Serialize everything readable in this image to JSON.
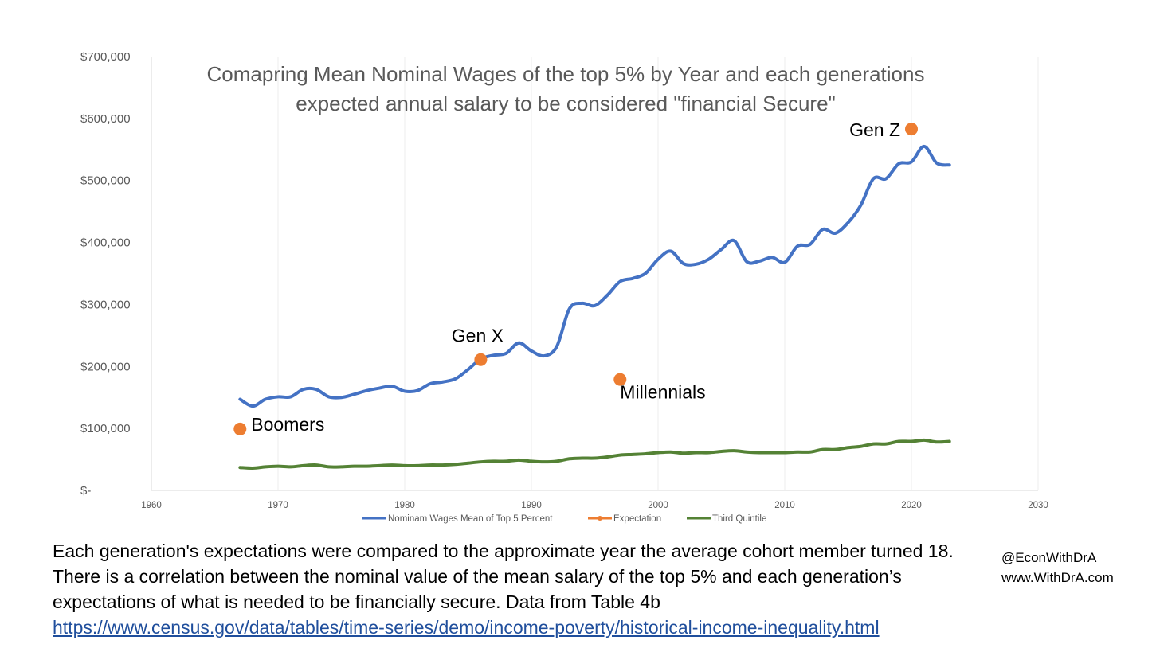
{
  "chart_data": {
    "type": "line",
    "title_lines": [
      "Comapring Mean Nominal Wages of the top 5% by Year and each generations",
      "expected annual salary to be considered \"financial Secure\""
    ],
    "xlim": [
      1960,
      2030
    ],
    "ylim": [
      0,
      700000
    ],
    "x_ticks": [
      "1960",
      "1970",
      "1980",
      "1990",
      "2000",
      "2010",
      "2020",
      "2030"
    ],
    "y_ticks": [
      "$-",
      "$100,000",
      "$200,000",
      "$300,000",
      "$400,000",
      "$500,000",
      "$600,000",
      "$700,000"
    ],
    "grid": "vertical",
    "legend_position": "bottom",
    "series": [
      {
        "name": "Nominam Wages Mean of Top 5 Percent",
        "color": "#4472c4",
        "x": [
          1967,
          1968,
          1969,
          1970,
          1971,
          1972,
          1973,
          1974,
          1975,
          1976,
          1977,
          1978,
          1979,
          1980,
          1981,
          1982,
          1983,
          1984,
          1985,
          1986,
          1987,
          1988,
          1989,
          1990,
          1991,
          1992,
          1993,
          1994,
          1995,
          1996,
          1997,
          1998,
          1999,
          2000,
          2001,
          2002,
          2003,
          2004,
          2005,
          2006,
          2007,
          2008,
          2009,
          2010,
          2011,
          2012,
          2013,
          2014,
          2015,
          2016,
          2017,
          2018,
          2019,
          2020,
          2021,
          2022,
          2023
        ],
        "y": [
          147000,
          136000,
          147000,
          151000,
          151000,
          163000,
          163000,
          151000,
          150000,
          155000,
          161000,
          165000,
          168000,
          160000,
          161000,
          172000,
          175000,
          180000,
          195000,
          212000,
          218000,
          221000,
          238000,
          225000,
          217000,
          232000,
          293000,
          302000,
          298000,
          315000,
          337000,
          342000,
          350000,
          373000,
          386000,
          366000,
          365000,
          373000,
          389000,
          403000,
          369000,
          370000,
          376000,
          368000,
          394000,
          397000,
          421000,
          415000,
          432000,
          460000,
          503000,
          503000,
          527000,
          530000,
          555000,
          528000,
          525000
        ]
      },
      {
        "name": "Expectation",
        "color": "#ed7d31",
        "marker_only": true,
        "x": [
          1967,
          1986,
          1997,
          2020
        ],
        "y": [
          99000,
          211000,
          179000,
          583000
        ],
        "labels": [
          "Boomers",
          "Gen X",
          "Millennials",
          "Gen Z"
        ]
      },
      {
        "name": "Third Quintile",
        "color": "#548235",
        "x": [
          1967,
          1968,
          1969,
          1970,
          1971,
          1972,
          1973,
          1974,
          1975,
          1976,
          1977,
          1978,
          1979,
          1980,
          1981,
          1982,
          1983,
          1984,
          1985,
          1986,
          1987,
          1988,
          1989,
          1990,
          1991,
          1992,
          1993,
          1994,
          1995,
          1996,
          1997,
          1998,
          1999,
          2000,
          2001,
          2002,
          2003,
          2004,
          2005,
          2006,
          2007,
          2008,
          2009,
          2010,
          2011,
          2012,
          2013,
          2014,
          2015,
          2016,
          2017,
          2018,
          2019,
          2020,
          2021,
          2022,
          2023
        ],
        "y": [
          37000,
          36000,
          38000,
          39000,
          38000,
          40000,
          41000,
          38000,
          38000,
          39000,
          39000,
          40000,
          41000,
          40000,
          40000,
          41000,
          41000,
          42000,
          44000,
          46000,
          47000,
          47000,
          49000,
          47000,
          46000,
          47000,
          51000,
          52000,
          52000,
          54000,
          57000,
          58000,
          59000,
          61000,
          62000,
          60000,
          61000,
          61000,
          63000,
          64000,
          62000,
          61000,
          61000,
          61000,
          62000,
          62000,
          66000,
          66000,
          69000,
          71000,
          75000,
          75000,
          79000,
          79000,
          81000,
          78000,
          79000
        ]
      }
    ]
  },
  "caption": {
    "text": "Each generation's expectations were compared to the approximate year the average cohort member turned 18. There is a correlation between the nominal value of the mean salary of the top 5% and each generation’s expectations of what is needed to be financially secure. Data from Table 4b",
    "link": "https://www.census.gov/data/tables/time-series/demo/income-poverty/historical-income-inequality.html"
  },
  "credits": {
    "handle": "@EconWithDrA",
    "website": "www.WithDrA.com"
  }
}
